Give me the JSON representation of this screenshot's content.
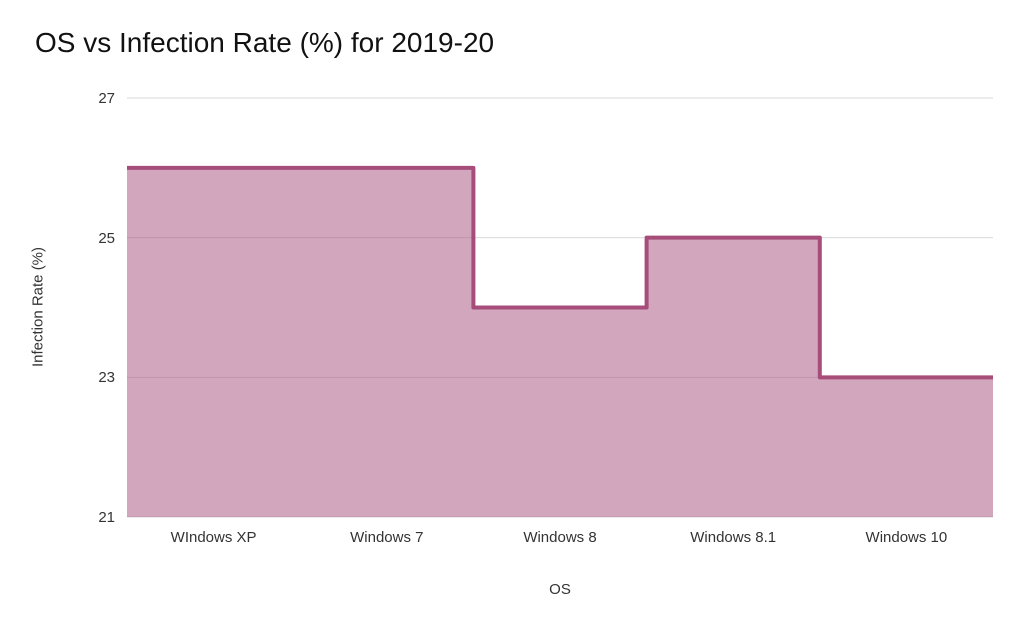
{
  "chart_data": {
    "type": "area",
    "subtype": "stepped-area",
    "title": "OS vs Infection Rate (%) for 2019-20",
    "xlabel": "OS",
    "ylabel": "Infection Rate (%)",
    "categories": [
      "WIndows XP",
      "Windows 7",
      "Windows 8",
      "Windows 8.1",
      "Windows 10"
    ],
    "values": [
      26,
      26,
      24,
      25,
      23
    ],
    "ylim": [
      21,
      27
    ],
    "yticks": [
      27,
      25,
      23,
      21
    ],
    "grid": true,
    "legend_position": "none",
    "colors": {
      "line": "#a64d79",
      "fill": "rgba(166, 77, 121, 0.5)",
      "gridline": "#d9d9d9",
      "axis_text": "#333333",
      "title_text": "#111111",
      "background": "#ffffff"
    }
  }
}
